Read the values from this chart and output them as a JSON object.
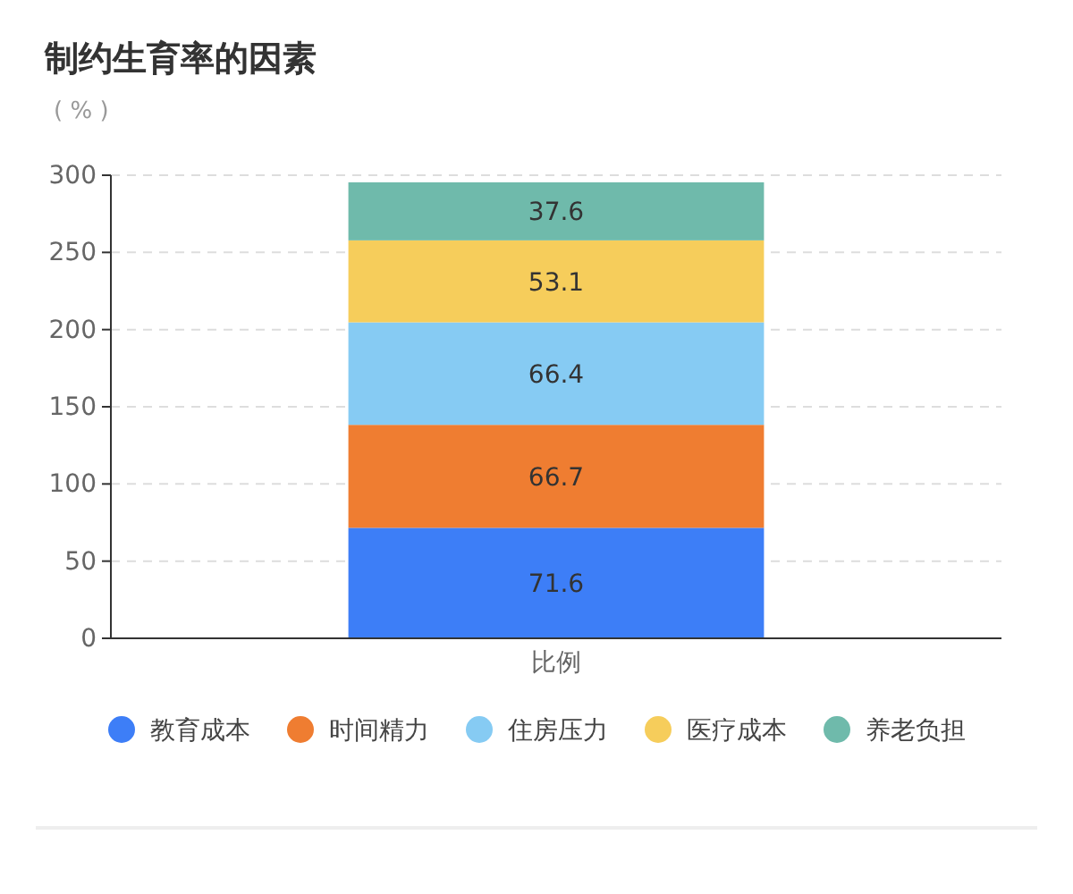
{
  "chart_data": {
    "type": "bar",
    "title": "制约生育率的因素",
    "ylabel": "( % )",
    "categories": [
      "比例"
    ],
    "series": [
      {
        "name": "教育成本",
        "color": "#3d7ef7",
        "values": [
          71.6
        ]
      },
      {
        "name": "时间精力",
        "color": "#ef7d31",
        "values": [
          66.7
        ]
      },
      {
        "name": "住房压力",
        "color": "#86cbf3",
        "values": [
          66.4
        ]
      },
      {
        "name": "医疗成本",
        "color": "#f6cd5b",
        "values": [
          53.1
        ]
      },
      {
        "name": "养老负担",
        "color": "#6fbaab",
        "values": [
          37.6
        ]
      }
    ],
    "stacked": true,
    "ylim": [
      0,
      300
    ],
    "yticks": [
      0,
      50,
      100,
      150,
      200,
      250,
      300
    ],
    "grid": "y",
    "legend": "bottom",
    "data_labels": true
  }
}
